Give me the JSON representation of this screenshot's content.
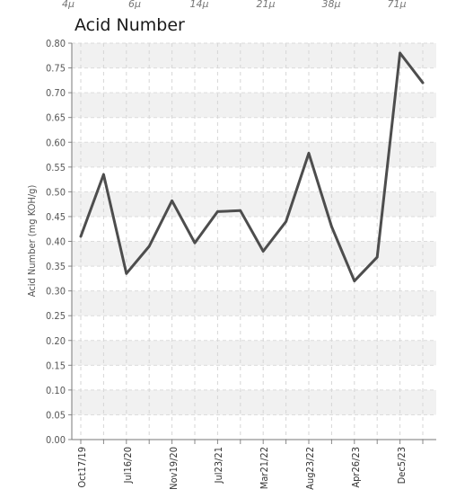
{
  "top_strip_labels": [
    "4μ",
    "6μ",
    "14μ",
    "21μ",
    "38μ",
    "71μ"
  ],
  "chart_data": {
    "type": "line",
    "title": "Acid Number",
    "ylabel": "Acid Number (mg KOH/g)",
    "xlabel": "",
    "ylim": [
      0,
      0.8
    ],
    "y_ticks": [
      "0.00",
      "0.05",
      "0.10",
      "0.15",
      "0.20",
      "0.25",
      "0.30",
      "0.35",
      "0.40",
      "0.45",
      "0.50",
      "0.55",
      "0.60",
      "0.65",
      "0.70",
      "0.75",
      "0.80"
    ],
    "x_tick_labels": [
      "Oct17/19",
      "Jul16/20",
      "Nov19/20",
      "Jul23/21",
      "Mar21/22",
      "Aug23/22",
      "Apr26/23",
      "Dec5/23"
    ],
    "grid": true,
    "line_color": "#4d4d4d",
    "series": [
      {
        "values": [
          0.41,
          0.535,
          0.335,
          0.39,
          0.482,
          0.397,
          0.46,
          0.462,
          0.38,
          0.44,
          0.578,
          0.43,
          0.32,
          0.368,
          0.78,
          0.72
        ]
      }
    ]
  }
}
